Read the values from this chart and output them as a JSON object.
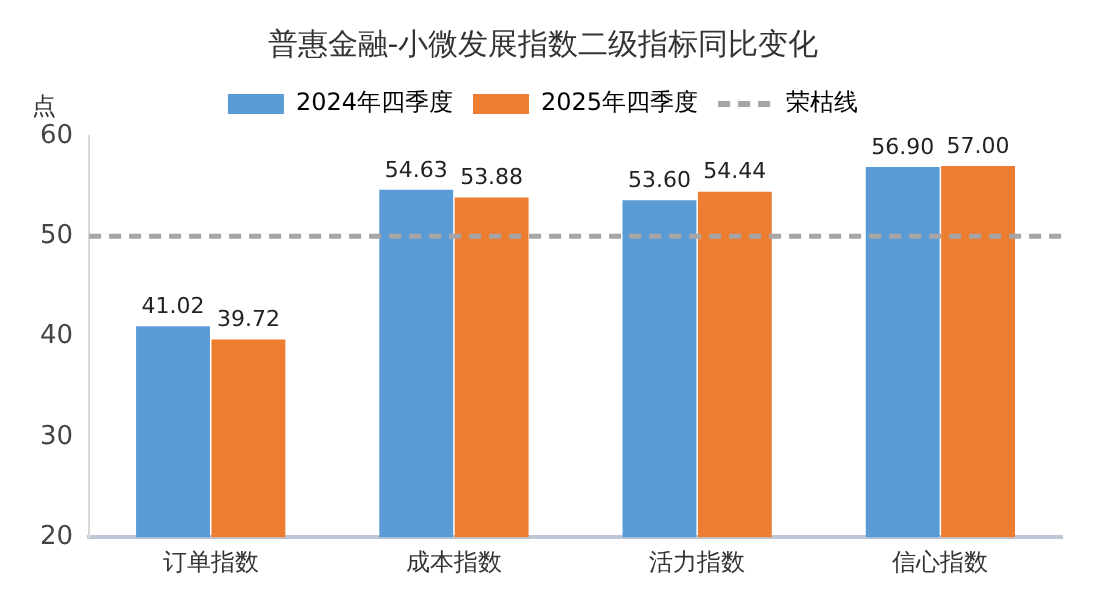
{
  "chart_data": {
    "type": "bar",
    "title": "普惠金融-小微发展指数二级指标同比变化",
    "ylabel": "点",
    "categories": [
      "订单指数",
      "成本指数",
      "活力指数",
      "信心指数"
    ],
    "series": [
      {
        "name": "2024年四季度",
        "color": "#5b9bd5",
        "values": [
          41.02,
          54.63,
          53.6,
          56.9
        ],
        "value_labels": [
          "41.02",
          "54.63",
          "53.60",
          "56.90"
        ]
      },
      {
        "name": "2025年四季度",
        "color": "#ed7d31",
        "values": [
          39.72,
          53.88,
          54.44,
          57.0
        ],
        "value_labels": [
          "39.72",
          "53.88",
          "54.44",
          "57.00"
        ]
      }
    ],
    "ylim": [
      20,
      60
    ],
    "yticks": [
      20,
      30,
      40,
      50,
      60
    ],
    "grid": false,
    "legend": "top",
    "ref_lines": [
      {
        "axis": "y",
        "value": 50,
        "label": "荣枯线",
        "color": "#a5a5a5",
        "line_style": "dashed"
      }
    ]
  }
}
